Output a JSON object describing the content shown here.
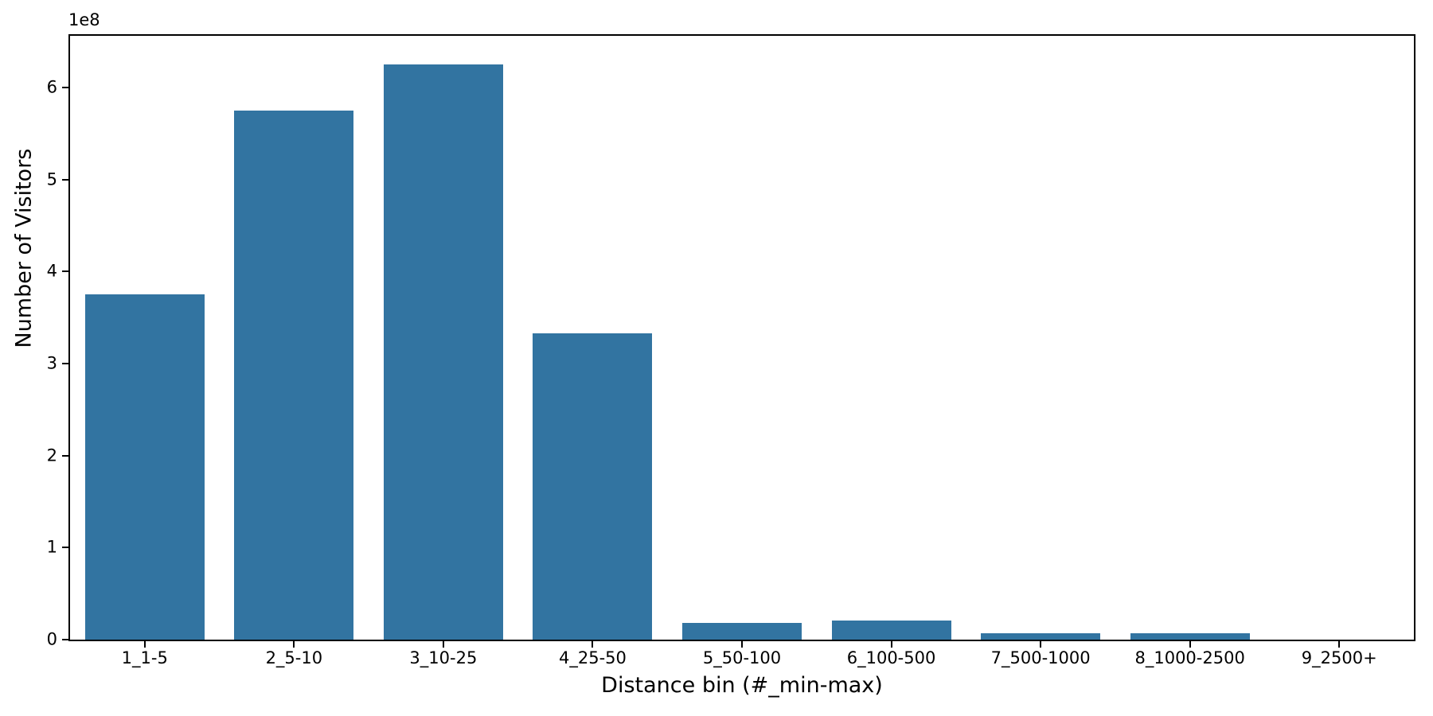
{
  "chart_data": {
    "type": "bar",
    "title": "",
    "xlabel": "Distance bin (#_min-max)",
    "ylabel": "Number of Visitors",
    "y_offset_label": "1e8",
    "categories": [
      "1_1-5",
      "2_5-10",
      "3_10-25",
      "4_25-50",
      "5_50-100",
      "6_100-500",
      "7_500-1000",
      "8_1000-2500",
      "9_2500+"
    ],
    "values": [
      375000000,
      575000000,
      625000000,
      333000000,
      18500000,
      21000000,
      7000000,
      7000000,
      0
    ],
    "bar_color": "#3274a1",
    "axis_color": "#000000",
    "background_color": "#ffffff",
    "ylim": [
      0,
      656250000
    ],
    "ytick_values": [
      0,
      100000000,
      200000000,
      300000000,
      400000000,
      500000000,
      600000000
    ],
    "ytick_labels": [
      "0",
      "1",
      "2",
      "3",
      "4",
      "5",
      "6"
    ],
    "bar_width_fraction": 0.8,
    "grid": false,
    "legend_position": "none"
  }
}
